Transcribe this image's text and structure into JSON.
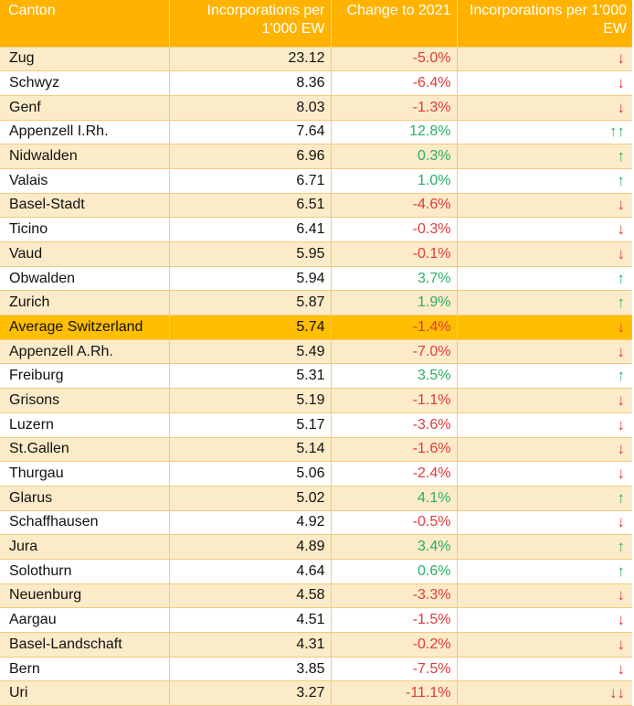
{
  "chart_data": {
    "type": "table",
    "headers": [
      "Canton",
      "Incorporations per 1'000 EW",
      "Change to 2021",
      "Incorporations per 1'000 EW"
    ],
    "colors": {
      "header_bg": "#FFB300",
      "row_odd": "#FCEBC8",
      "row_even": "#FFFFFF",
      "highlight": "#FFBE00",
      "negative": "#E03A3A",
      "positive": "#2BAE66"
    },
    "rows": [
      {
        "canton": "Zug",
        "value": "23.12",
        "change": "-5.0%",
        "trend": "↓",
        "sign": "neg"
      },
      {
        "canton": "Schwyz",
        "value": "8.36",
        "change": "-6.4%",
        "trend": "↓",
        "sign": "neg"
      },
      {
        "canton": "Genf",
        "value": "8.03",
        "change": "-1.3%",
        "trend": "↓",
        "sign": "neg"
      },
      {
        "canton": "Appenzell I.Rh.",
        "value": "7.64",
        "change": "12.8%",
        "trend": "↑↑",
        "sign": "pos"
      },
      {
        "canton": "Nidwalden",
        "value": "6.96",
        "change": "0.3%",
        "trend": "↑",
        "sign": "pos"
      },
      {
        "canton": "Valais",
        "value": "6.71",
        "change": "1.0%",
        "trend": "↑",
        "sign": "pos"
      },
      {
        "canton": "Basel-Stadt",
        "value": "6.51",
        "change": "-4.6%",
        "trend": "↓",
        "sign": "neg"
      },
      {
        "canton": "Ticino",
        "value": "6.41",
        "change": "-0.3%",
        "trend": "↓",
        "sign": "neg"
      },
      {
        "canton": "Vaud",
        "value": "5.95",
        "change": "-0.1%",
        "trend": "↓",
        "sign": "neg"
      },
      {
        "canton": "Obwalden",
        "value": "5.94",
        "change": "3.7%",
        "trend": "↑",
        "sign": "pos"
      },
      {
        "canton": "Zurich",
        "value": "5.87",
        "change": "1.9%",
        "trend": "↑",
        "sign": "pos"
      },
      {
        "canton": "Average Switzerland",
        "value": "5.74",
        "change": "-1.4%",
        "trend": "↓",
        "sign": "neg",
        "highlight": true
      },
      {
        "canton": "Appenzell A.Rh.",
        "value": "5.49",
        "change": "-7.0%",
        "trend": "↓",
        "sign": "neg"
      },
      {
        "canton": "Freiburg",
        "value": "5.31",
        "change": "3.5%",
        "trend": "↑",
        "sign": "pos"
      },
      {
        "canton": "Grisons",
        "value": "5.19",
        "change": "-1.1%",
        "trend": "↓",
        "sign": "neg"
      },
      {
        "canton": "Luzern",
        "value": "5.17",
        "change": "-3.6%",
        "trend": "↓",
        "sign": "neg"
      },
      {
        "canton": "St.Gallen",
        "value": "5.14",
        "change": "-1.6%",
        "trend": "↓",
        "sign": "neg"
      },
      {
        "canton": "Thurgau",
        "value": "5.06",
        "change": "-2.4%",
        "trend": "↓",
        "sign": "neg"
      },
      {
        "canton": "Glarus",
        "value": "5.02",
        "change": "4.1%",
        "trend": "↑",
        "sign": "pos"
      },
      {
        "canton": "Schaffhausen",
        "value": "4.92",
        "change": "-0.5%",
        "trend": "↓",
        "sign": "neg"
      },
      {
        "canton": "Jura",
        "value": "4.89",
        "change": "3.4%",
        "trend": "↑",
        "sign": "pos"
      },
      {
        "canton": "Solothurn",
        "value": "4.64",
        "change": "0.6%",
        "trend": "↑",
        "sign": "pos"
      },
      {
        "canton": "Neuenburg",
        "value": "4.58",
        "change": "-3.3%",
        "trend": "↓",
        "sign": "neg"
      },
      {
        "canton": "Aargau",
        "value": "4.51",
        "change": "-1.5%",
        "trend": "↓",
        "sign": "neg"
      },
      {
        "canton": "Basel-Landschaft",
        "value": "4.31",
        "change": "-0.2%",
        "trend": "↓",
        "sign": "neg"
      },
      {
        "canton": "Bern",
        "value": "3.85",
        "change": "-7.5%",
        "trend": "↓",
        "sign": "neg"
      },
      {
        "canton": "Uri",
        "value": "3.27",
        "change": "-11.1%",
        "trend": "↓↓",
        "sign": "neg"
      }
    ]
  }
}
